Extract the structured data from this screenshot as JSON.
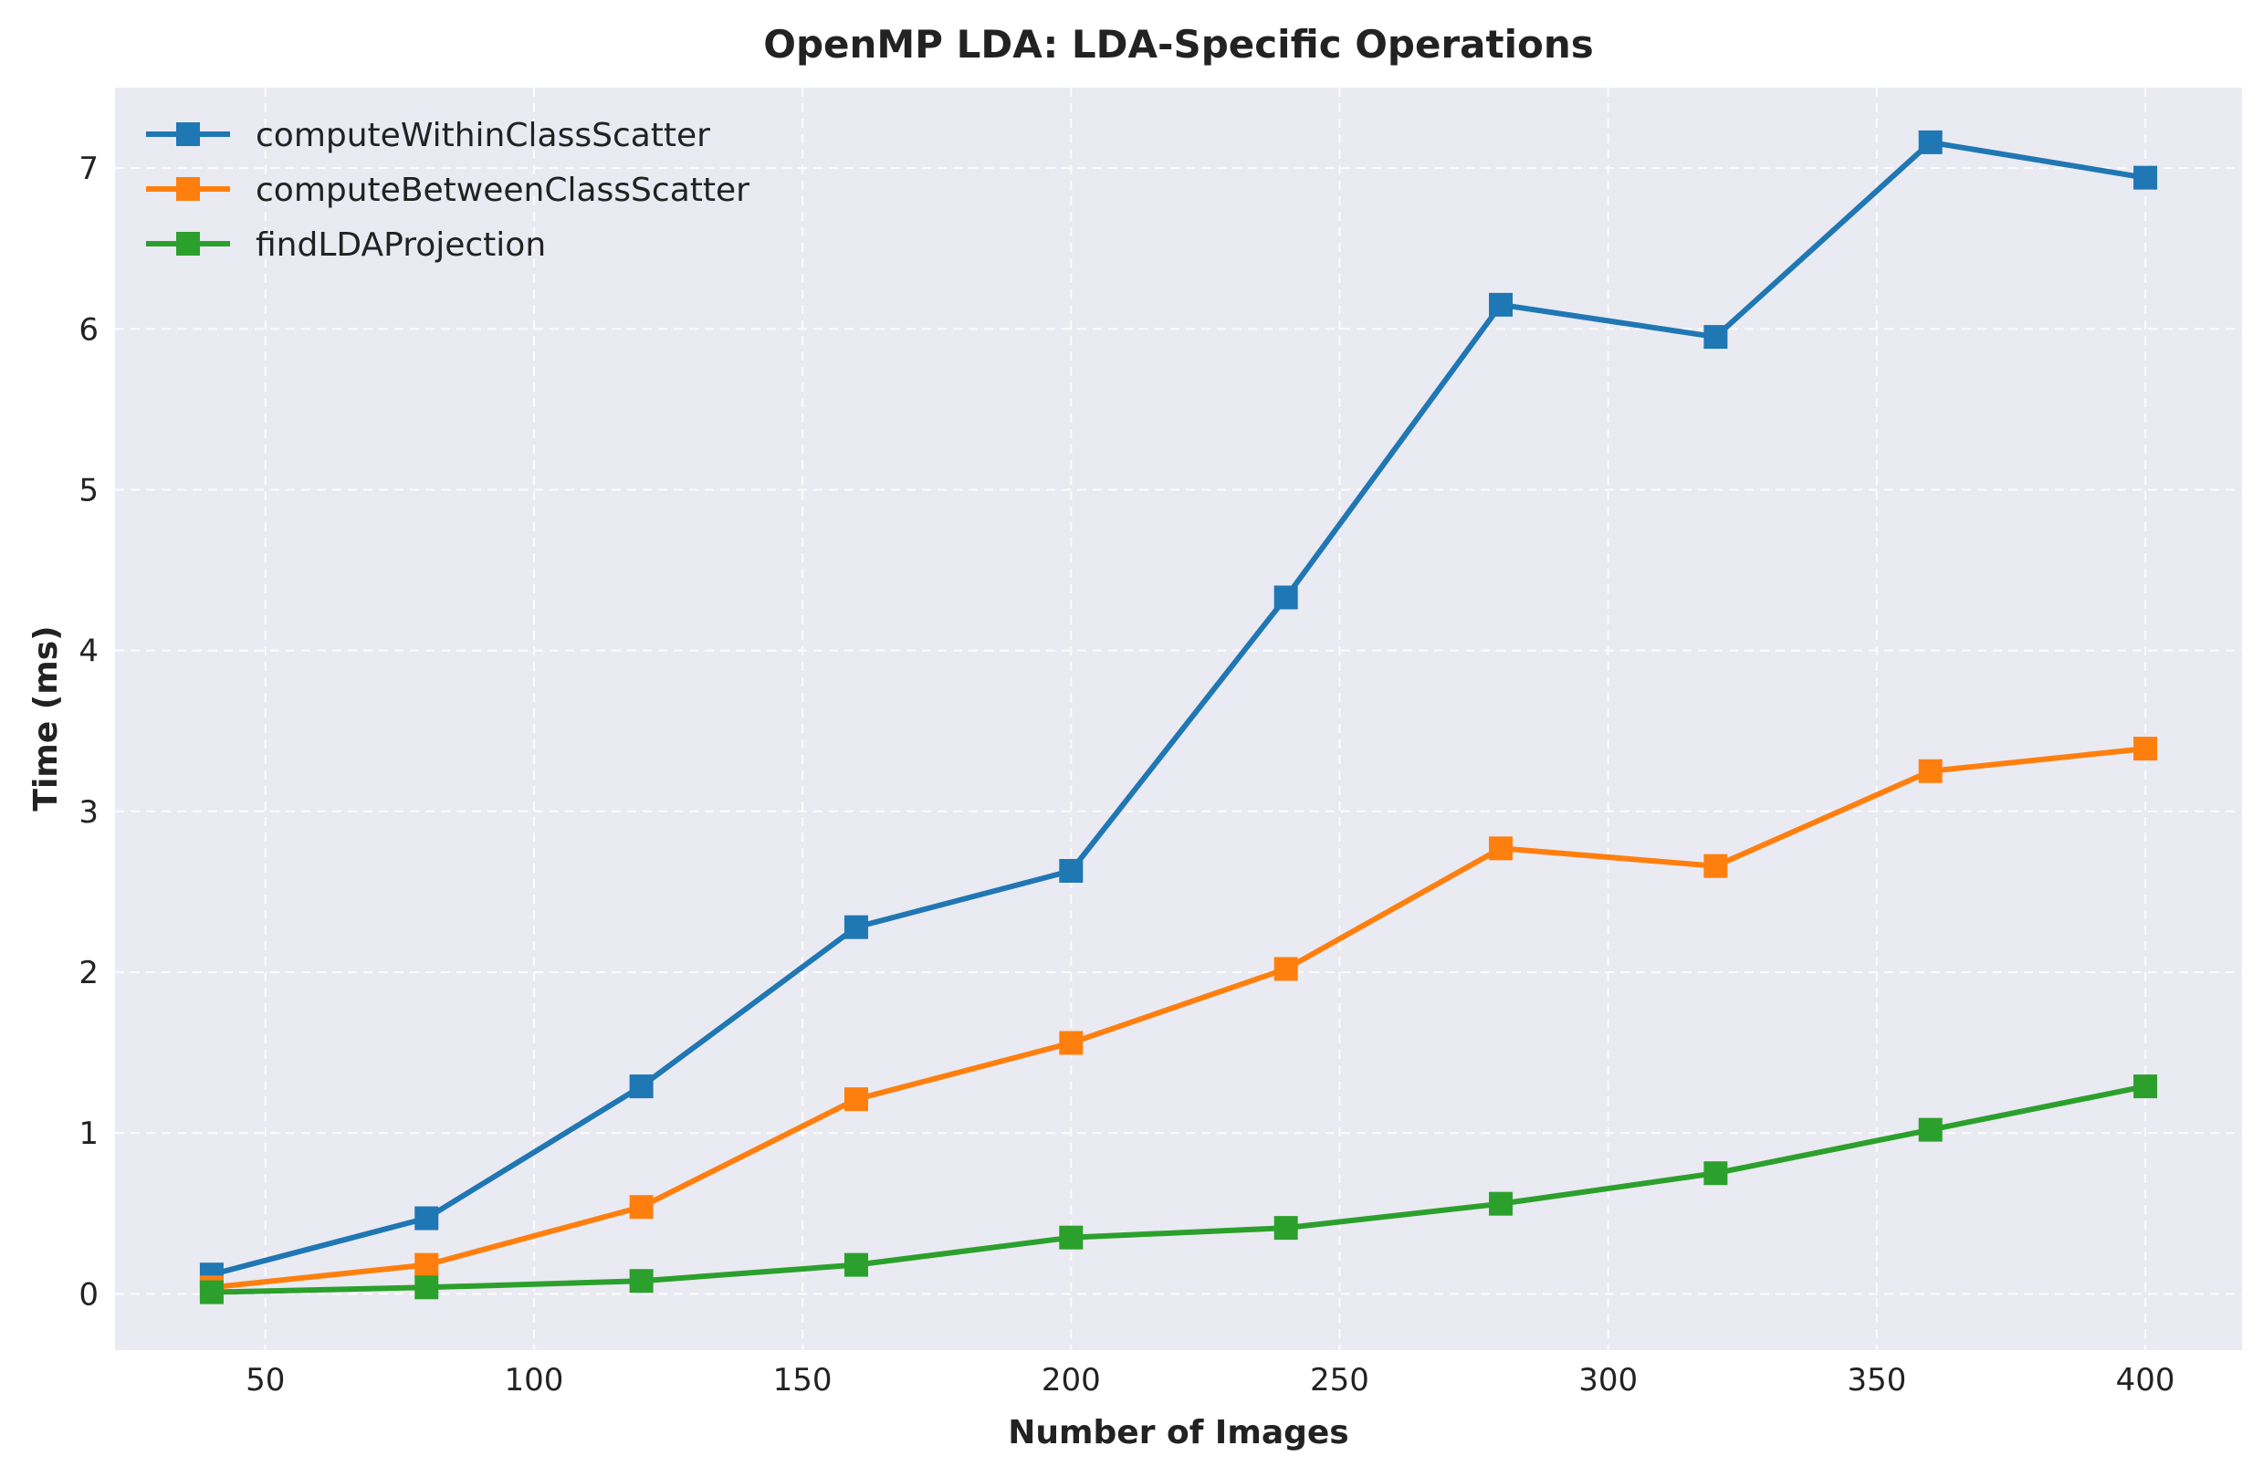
{
  "chart_data": {
    "type": "line",
    "title": "OpenMP LDA: LDA-Specific Operations",
    "xlabel": "Number of Images",
    "ylabel": "Time (ms)",
    "x": [
      40,
      80,
      120,
      160,
      200,
      240,
      280,
      320,
      360,
      400
    ],
    "xlim": [
      22,
      418
    ],
    "ylim": [
      -0.35,
      7.5
    ],
    "xticks": [
      50,
      100,
      150,
      200,
      250,
      300,
      350,
      400
    ],
    "yticks": [
      0,
      1,
      2,
      3,
      4,
      5,
      6,
      7
    ],
    "grid": true,
    "legend_position": "top-left",
    "series": [
      {
        "name": "computeWithinClassScatter",
        "color": "#1f77b4",
        "marker": "square",
        "values": [
          0.12,
          0.47,
          1.29,
          2.28,
          2.63,
          4.33,
          6.15,
          5.95,
          7.16,
          6.94
        ]
      },
      {
        "name": "computeBetweenClassScatter",
        "color": "#ff7f0e",
        "marker": "square",
        "values": [
          0.04,
          0.18,
          0.54,
          1.21,
          1.56,
          2.02,
          2.77,
          2.66,
          3.25,
          3.39
        ]
      },
      {
        "name": "findLDAProjection",
        "color": "#2ca02c",
        "marker": "square",
        "values": [
          0.01,
          0.04,
          0.08,
          0.18,
          0.35,
          0.41,
          0.56,
          0.75,
          1.02,
          1.29
        ]
      }
    ]
  }
}
